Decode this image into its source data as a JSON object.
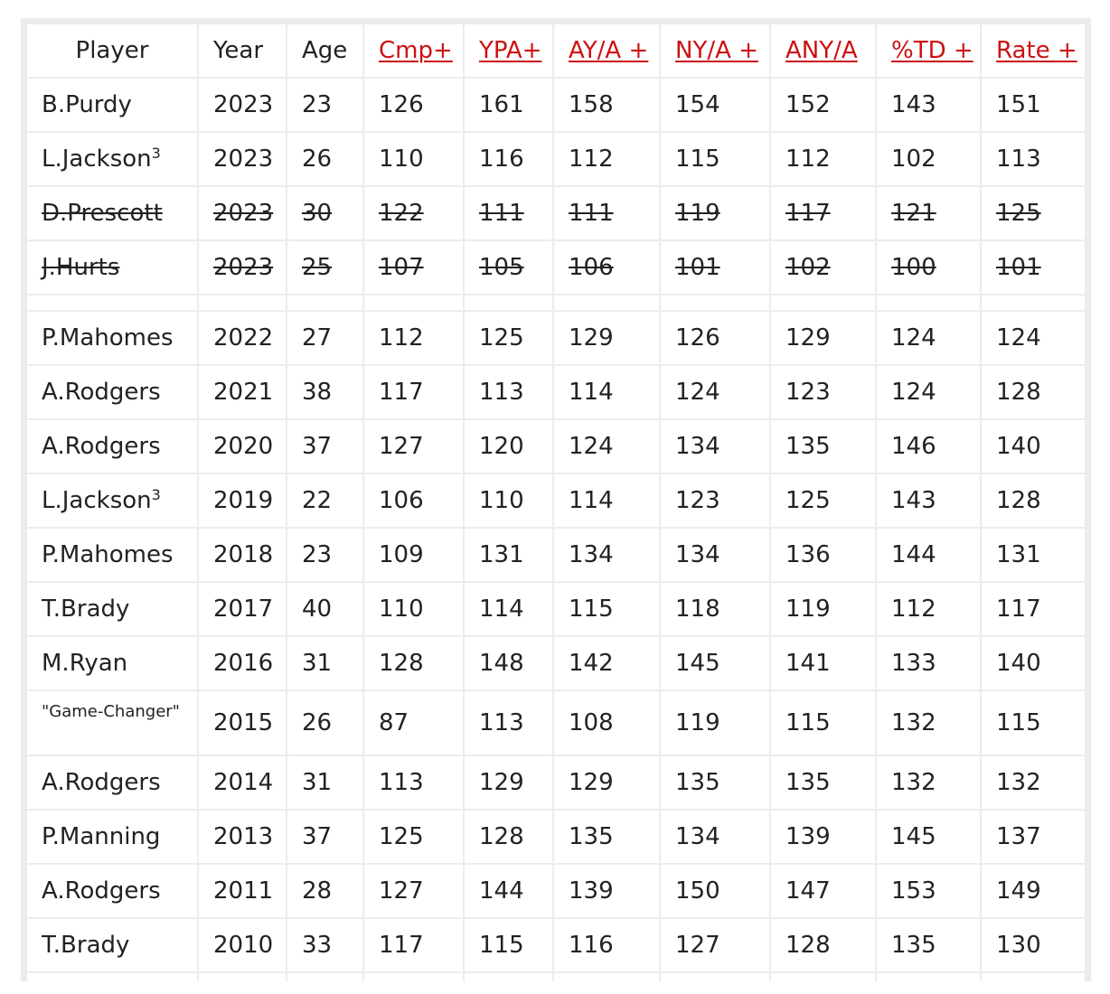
{
  "headers": [
    {
      "label": "Player",
      "link": false
    },
    {
      "label": "Year",
      "link": false
    },
    {
      "label": "Age",
      "link": false
    },
    {
      "label": "Cmp+",
      "link": true
    },
    {
      "label": "YPA+",
      "link": true
    },
    {
      "label": "AY/A +",
      "link": true
    },
    {
      "label": "NY/A +",
      "link": true
    },
    {
      "label": "ANY/A",
      "link": true
    },
    {
      "label": "%TD +",
      "link": true
    },
    {
      "label": "Rate +",
      "link": true
    }
  ],
  "rows": [
    {
      "player": "B.Purdy",
      "sup": "",
      "year": "2023",
      "age": "23",
      "cmp": "126",
      "ypa": "161",
      "aya": "158",
      "nya": "154",
      "anya": "152",
      "td": "143",
      "rate": "151",
      "struck": false,
      "small": false,
      "bold": [
        "ypa",
        "aya",
        "nya",
        "anya",
        "rate"
      ]
    },
    {
      "player": "L.Jackson",
      "sup": "3",
      "year": "2023",
      "age": "26",
      "cmp": "110",
      "ypa": "116",
      "aya": "112",
      "nya": "115",
      "anya": "112",
      "td": "102",
      "rate": "113",
      "struck": false,
      "small": false,
      "bold": []
    },
    {
      "player": "D.Prescott",
      "sup": "",
      "year": "2023",
      "age": "30",
      "cmp": "122",
      "ypa": "111",
      "aya": "111",
      "nya": "119",
      "anya": "117",
      "td": "121",
      "rate": "125",
      "struck": true,
      "small": false,
      "bold": []
    },
    {
      "player": "J.Hurts",
      "sup": "",
      "year": "2023",
      "age": "25",
      "cmp": "107",
      "ypa": "105",
      "aya": "106",
      "nya": "101",
      "anya": "102",
      "td": "100",
      "rate": "101",
      "struck": true,
      "small": false,
      "bold": []
    },
    {
      "spacer": true
    },
    {
      "player": "P.Mahomes",
      "sup": "",
      "year": "2022",
      "age": "27",
      "cmp": "112",
      "ypa": "125",
      "aya": "129",
      "nya": "126",
      "anya": "129",
      "td": "124",
      "rate": "124",
      "struck": false,
      "small": false,
      "bold": []
    },
    {
      "player": "A.Rodgers",
      "sup": "",
      "year": "2021",
      "age": "38",
      "cmp": "117",
      "ypa": "113",
      "aya": "114",
      "nya": "124",
      "anya": "123",
      "td": "124",
      "rate": "128",
      "struck": false,
      "small": false,
      "bold": []
    },
    {
      "player": "A.Rodgers",
      "sup": "",
      "year": "2020",
      "age": "37",
      "cmp": "127",
      "ypa": "120",
      "aya": "124",
      "nya": "134",
      "anya": "135",
      "td": "146",
      "rate": "140",
      "struck": false,
      "small": false,
      "bold": []
    },
    {
      "player": "L.Jackson",
      "sup": "3",
      "year": "2019",
      "age": "22",
      "cmp": "106",
      "ypa": "110",
      "aya": "114",
      "nya": "123",
      "anya": "125",
      "td": "143",
      "rate": "128",
      "struck": false,
      "small": false,
      "bold": []
    },
    {
      "player": "P.Mahomes",
      "sup": "",
      "year": "2018",
      "age": "23",
      "cmp": "109",
      "ypa": "131",
      "aya": "134",
      "nya": "134",
      "anya": "136",
      "td": "144",
      "rate": "131",
      "struck": false,
      "small": false,
      "bold": []
    },
    {
      "player": "T.Brady",
      "sup": "",
      "year": "2017",
      "age": "40",
      "cmp": "110",
      "ypa": "114",
      "aya": "115",
      "nya": "118",
      "anya": "119",
      "td": "112",
      "rate": "117",
      "struck": false,
      "small": false,
      "bold": []
    },
    {
      "player": "M.Ryan",
      "sup": "",
      "year": "2016",
      "age": "31",
      "cmp": "128",
      "ypa": "148",
      "aya": "142",
      "nya": "145",
      "anya": "141",
      "td": "133",
      "rate": "140",
      "struck": false,
      "small": false,
      "bold": [
        "cmp"
      ]
    },
    {
      "player": "\"Game-Changer\"",
      "sup": "",
      "year": "2015",
      "age": "26",
      "cmp": "87",
      "ypa": "113",
      "aya": "108",
      "nya": "119",
      "anya": "115",
      "td": "132",
      "rate": "115",
      "struck": false,
      "small": true,
      "bold": []
    },
    {
      "player": "A.Rodgers",
      "sup": "",
      "year": "2014",
      "age": "31",
      "cmp": "113",
      "ypa": "129",
      "aya": "129",
      "nya": "135",
      "anya": "135",
      "td": "132",
      "rate": "132",
      "struck": false,
      "small": false,
      "bold": []
    },
    {
      "player": "P.Manning",
      "sup": "",
      "year": "2013",
      "age": "37",
      "cmp": "125",
      "ypa": "128",
      "aya": "135",
      "nya": "134",
      "anya": "139",
      "td": "145",
      "rate": "137",
      "struck": false,
      "small": false,
      "bold": []
    },
    {
      "player": "A.Rodgers",
      "sup": "",
      "year": "2011",
      "age": "28",
      "cmp": "127",
      "ypa": "144",
      "aya": "139",
      "nya": "150",
      "anya": "147",
      "td": "153",
      "rate": "149",
      "struck": false,
      "small": false,
      "bold": [
        "td"
      ]
    },
    {
      "player": "T.Brady",
      "sup": "",
      "year": "2010",
      "age": "33",
      "cmp": "117",
      "ypa": "115",
      "aya": "116",
      "nya": "127",
      "anya": "128",
      "td": "135",
      "rate": "130",
      "struck": false,
      "small": false,
      "bold": []
    },
    {
      "tail": true
    }
  ],
  "colors": {
    "link": "#cc1111",
    "text": "#222222",
    "grid": "#ececec"
  }
}
